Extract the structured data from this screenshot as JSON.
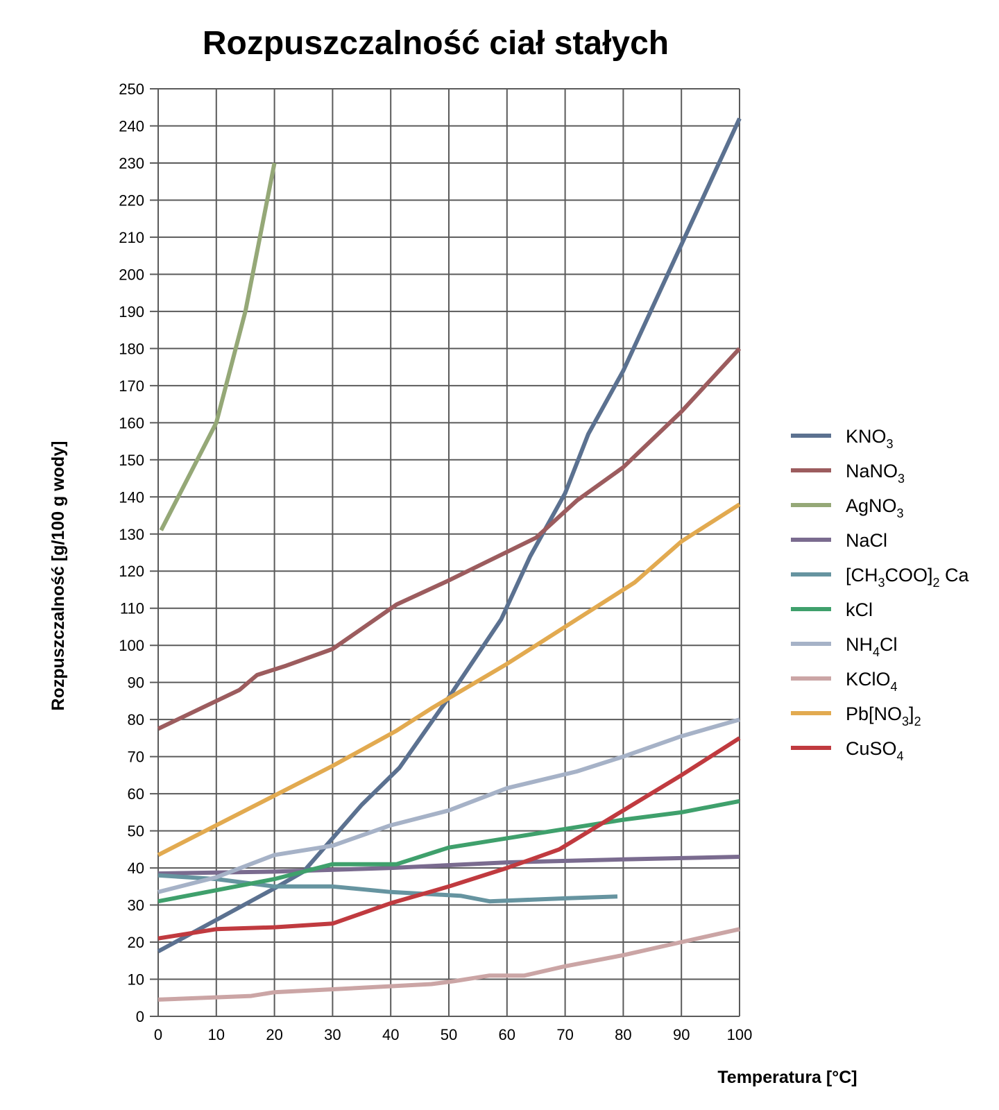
{
  "chart_data": {
    "type": "line",
    "title": "Rozpuszczalność ciał stałych",
    "xlabel": "Temperatura [°C]",
    "ylabel": "Rozpuszczalność [g/100 g wody]",
    "xlim": [
      0,
      100
    ],
    "ylim": [
      0,
      250
    ],
    "grid": true,
    "legend_position": "right",
    "x_ticks": [
      0,
      10,
      20,
      30,
      40,
      50,
      60,
      70,
      80,
      90,
      100
    ],
    "y_ticks": [
      0,
      10,
      20,
      30,
      40,
      50,
      60,
      70,
      80,
      90,
      100,
      110,
      120,
      130,
      140,
      150,
      160,
      170,
      180,
      190,
      200,
      210,
      220,
      230,
      240,
      250
    ],
    "series": [
      {
        "name": "KNO3",
        "label": "KNO",
        "sub": "3",
        "suffix": "",
        "color": "#5b7190",
        "points": [
          [
            0,
            17.5
          ],
          [
            10,
            26
          ],
          [
            20,
            34.5
          ],
          [
            25,
            39
          ],
          [
            30,
            48
          ],
          [
            35,
            57
          ],
          [
            41.5,
            67
          ],
          [
            50,
            86
          ],
          [
            59,
            107
          ],
          [
            64,
            124
          ],
          [
            70,
            141
          ],
          [
            74,
            157
          ],
          [
            80,
            174
          ],
          [
            90,
            208
          ],
          [
            100,
            242
          ]
        ]
      },
      {
        "name": "NaNO3",
        "label": "NaNO",
        "sub": "3",
        "suffix": "",
        "color": "#9c5c5e",
        "points": [
          [
            0,
            77.5
          ],
          [
            10,
            85
          ],
          [
            14,
            88
          ],
          [
            17,
            92
          ],
          [
            22,
            94.5
          ],
          [
            30,
            99
          ],
          [
            41,
            111
          ],
          [
            50,
            117.5
          ],
          [
            65,
            129
          ],
          [
            72,
            139
          ],
          [
            80,
            148
          ],
          [
            90,
            163
          ],
          [
            100,
            180
          ]
        ]
      },
      {
        "name": "AgNO3",
        "label": "AgNO",
        "sub": "3",
        "suffix": "",
        "color": "#95a877",
        "points": [
          [
            0.5,
            131
          ],
          [
            10,
            160
          ],
          [
            15,
            190
          ],
          [
            20,
            230
          ]
        ]
      },
      {
        "name": "NaCl",
        "label": "NaCl",
        "sub": "",
        "suffix": "",
        "color": "#7a6b8f",
        "points": [
          [
            0,
            38.5
          ],
          [
            20,
            39
          ],
          [
            40,
            40
          ],
          [
            60,
            41.5
          ],
          [
            80,
            42.3
          ],
          [
            100,
            43
          ]
        ]
      },
      {
        "name": "[CH3COO]2 Ca",
        "label": "[CH",
        "sub": "3",
        "suffix": "COO]",
        "sub2": "2",
        "suffix2": " Ca",
        "color": "#6694a0",
        "points": [
          [
            0,
            38
          ],
          [
            10,
            37
          ],
          [
            20,
            35
          ],
          [
            30,
            35
          ],
          [
            40,
            33.5
          ],
          [
            52,
            32.5
          ],
          [
            57,
            31
          ],
          [
            70,
            31.8
          ],
          [
            79,
            32.3
          ]
        ]
      },
      {
        "name": "kCl",
        "label": "kCl",
        "sub": "",
        "suffix": "",
        "color": "#3fa06c",
        "points": [
          [
            0,
            31
          ],
          [
            10,
            34
          ],
          [
            20,
            37
          ],
          [
            30,
            41
          ],
          [
            41,
            41
          ],
          [
            50,
            45.5
          ],
          [
            60,
            48
          ],
          [
            70,
            50.5
          ],
          [
            80,
            53
          ],
          [
            90,
            55
          ],
          [
            100,
            58
          ]
        ]
      },
      {
        "name": "NH4Cl",
        "label": "NH",
        "sub": "4",
        "suffix": "Cl",
        "color": "#a6b2c7",
        "points": [
          [
            0,
            33.5
          ],
          [
            10,
            37.5
          ],
          [
            20,
            43.5
          ],
          [
            30,
            46
          ],
          [
            40,
            51.5
          ],
          [
            50,
            55.5
          ],
          [
            60,
            61.5
          ],
          [
            72,
            66
          ],
          [
            80,
            70
          ],
          [
            90,
            75.5
          ],
          [
            100,
            80
          ]
        ]
      },
      {
        "name": "KClO4",
        "label": "KClO",
        "sub": "4",
        "suffix": "",
        "color": "#cba5a5",
        "points": [
          [
            0,
            4.5
          ],
          [
            16,
            5.5
          ],
          [
            20,
            6.5
          ],
          [
            30,
            7.3
          ],
          [
            47,
            8.7
          ],
          [
            51,
            9.5
          ],
          [
            57,
            11
          ],
          [
            63,
            11
          ],
          [
            70,
            13.5
          ],
          [
            80,
            16.5
          ],
          [
            90,
            20
          ],
          [
            100,
            23.5
          ]
        ]
      },
      {
        "name": "Pb[NO3]2",
        "label": "Pb[NO",
        "sub": "3",
        "suffix": "]",
        "sub2": "2",
        "suffix2": "",
        "color": "#e2aa50",
        "points": [
          [
            0,
            43.5
          ],
          [
            10,
            51.5
          ],
          [
            20,
            59.5
          ],
          [
            30,
            67.5
          ],
          [
            41,
            77
          ],
          [
            47,
            83
          ],
          [
            60,
            95
          ],
          [
            70,
            105
          ],
          [
            82,
            117
          ],
          [
            90,
            128
          ],
          [
            93,
            131
          ],
          [
            100,
            138
          ]
        ]
      },
      {
        "name": "CuSO4",
        "label": "CuSO",
        "sub": "4",
        "suffix": "",
        "color": "#c03a3f",
        "points": [
          [
            0,
            21
          ],
          [
            10,
            23.5
          ],
          [
            20,
            24
          ],
          [
            30,
            25
          ],
          [
            40,
            30.5
          ],
          [
            50,
            35
          ],
          [
            60,
            40
          ],
          [
            69,
            45
          ],
          [
            80,
            55.5
          ],
          [
            90,
            65
          ],
          [
            100,
            75
          ]
        ]
      }
    ]
  }
}
